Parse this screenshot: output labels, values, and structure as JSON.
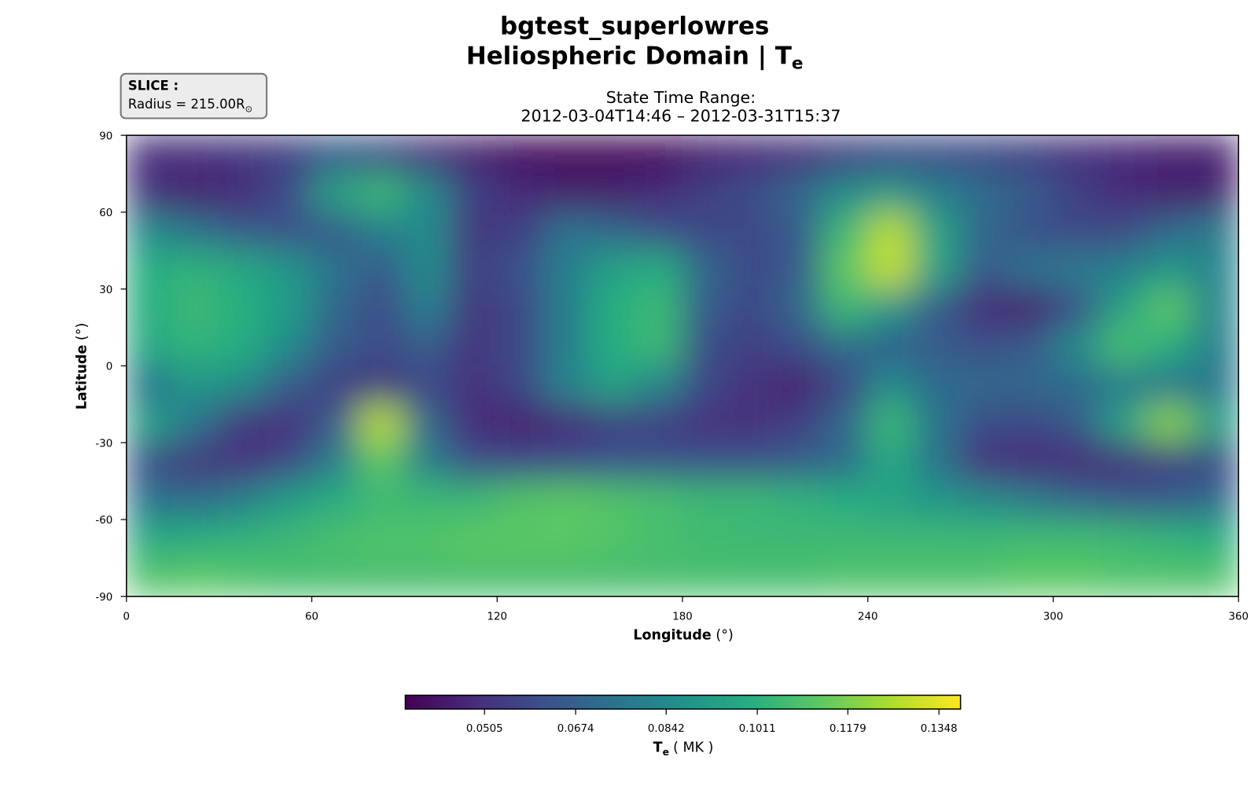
{
  "chart_data": {
    "type": "heatmap",
    "title": "bgtest_superlowres",
    "title2": "Heliospheric Domain | T",
    "title2_sub": "e",
    "subtitle": "State Time Range:",
    "time_range": "2012-03-04T14:46 – 2012-03-31T15:37",
    "slice_label": "SLICE :",
    "slice_text": "Radius = 215.00R",
    "slice_sub": "⊙",
    "xlabel": "Longitude",
    "xlabel_unit": "(°)",
    "ylabel": "Latitude",
    "ylabel_unit": "(°)",
    "colorbar_label": "T",
    "colorbar_sub": "e",
    "colorbar_unit": "( MK )",
    "colormap": "viridis",
    "xlim": [
      0,
      360
    ],
    "xticks": [
      0,
      60,
      120,
      180,
      240,
      300,
      360
    ],
    "ylim": [
      -90,
      90
    ],
    "yticks": [
      -90,
      -60,
      -30,
      0,
      30,
      60,
      90
    ],
    "clim": [
      0.0358,
      0.1388
    ],
    "cticks": [
      0.0505,
      0.0674,
      0.0842,
      0.1011,
      0.1179,
      0.1348
    ],
    "xbins": [
      0,
      15,
      30,
      45,
      60,
      75,
      90,
      105,
      120,
      135,
      150,
      165,
      180,
      195,
      210,
      225,
      240,
      255,
      270,
      285,
      300,
      315,
      330,
      345,
      360
    ],
    "ybins": [
      90,
      75,
      60,
      45,
      30,
      15,
      0,
      -15,
      -30,
      -45,
      -60,
      -75,
      -90
    ],
    "z": [
      [
        0.05,
        0.05,
        0.052,
        0.055,
        0.065,
        0.06,
        0.05,
        0.045,
        0.04,
        0.038,
        0.038,
        0.04,
        0.045,
        0.048,
        0.05,
        0.055,
        0.058,
        0.06,
        0.058,
        0.055,
        0.05,
        0.048,
        0.045,
        0.045
      ],
      [
        0.05,
        0.045,
        0.048,
        0.06,
        0.095,
        0.105,
        0.085,
        0.055,
        0.048,
        0.045,
        0.045,
        0.048,
        0.055,
        0.06,
        0.07,
        0.085,
        0.09,
        0.08,
        0.072,
        0.065,
        0.055,
        0.048,
        0.045,
        0.045
      ],
      [
        0.085,
        0.075,
        0.065,
        0.062,
        0.065,
        0.08,
        0.085,
        0.052,
        0.055,
        0.075,
        0.07,
        0.062,
        0.058,
        0.058,
        0.065,
        0.105,
        0.128,
        0.095,
        0.07,
        0.062,
        0.058,
        0.06,
        0.07,
        0.078
      ],
      [
        0.1,
        0.102,
        0.098,
        0.09,
        0.075,
        0.065,
        0.085,
        0.055,
        0.062,
        0.08,
        0.095,
        0.1,
        0.07,
        0.058,
        0.065,
        0.112,
        0.13,
        0.095,
        0.065,
        0.075,
        0.078,
        0.08,
        0.09,
        0.082
      ],
      [
        0.1,
        0.105,
        0.1,
        0.092,
        0.07,
        0.06,
        0.08,
        0.052,
        0.058,
        0.08,
        0.1,
        0.105,
        0.065,
        0.058,
        0.07,
        0.105,
        0.09,
        0.065,
        0.048,
        0.045,
        0.062,
        0.095,
        0.112,
        0.082
      ],
      [
        0.098,
        0.102,
        0.1,
        0.085,
        0.065,
        0.06,
        0.065,
        0.052,
        0.058,
        0.08,
        0.1,
        0.105,
        0.06,
        0.055,
        0.06,
        0.072,
        0.068,
        0.065,
        0.062,
        0.065,
        0.085,
        0.108,
        0.1,
        0.08
      ],
      [
        0.075,
        0.09,
        0.085,
        0.065,
        0.055,
        0.052,
        0.058,
        0.05,
        0.058,
        0.082,
        0.095,
        0.082,
        0.058,
        0.05,
        0.045,
        0.058,
        0.085,
        0.072,
        0.07,
        0.07,
        0.072,
        0.078,
        0.075,
        0.075
      ],
      [
        0.095,
        0.075,
        0.052,
        0.05,
        0.065,
        0.128,
        0.07,
        0.048,
        0.045,
        0.048,
        0.055,
        0.055,
        0.05,
        0.05,
        0.055,
        0.07,
        0.105,
        0.075,
        0.06,
        0.058,
        0.065,
        0.095,
        0.12,
        0.095
      ],
      [
        0.06,
        0.052,
        0.05,
        0.058,
        0.078,
        0.112,
        0.08,
        0.06,
        0.058,
        0.06,
        0.062,
        0.062,
        0.062,
        0.062,
        0.065,
        0.072,
        0.098,
        0.075,
        0.05,
        0.048,
        0.048,
        0.05,
        0.055,
        0.058
      ],
      [
        0.075,
        0.072,
        0.08,
        0.092,
        0.1,
        0.105,
        0.105,
        0.105,
        0.11,
        0.112,
        0.11,
        0.108,
        0.105,
        0.105,
        0.102,
        0.1,
        0.095,
        0.09,
        0.085,
        0.078,
        0.07,
        0.065,
        0.065,
        0.07
      ],
      [
        0.098,
        0.1,
        0.102,
        0.105,
        0.108,
        0.11,
        0.11,
        0.112,
        0.112,
        0.112,
        0.11,
        0.108,
        0.106,
        0.105,
        0.105,
        0.105,
        0.105,
        0.105,
        0.105,
        0.106,
        0.106,
        0.105,
        0.102,
        0.1
      ],
      [
        0.11,
        0.112,
        0.11,
        0.108,
        0.108,
        0.108,
        0.108,
        0.108,
        0.108,
        0.108,
        0.108,
        0.108,
        0.108,
        0.108,
        0.108,
        0.11,
        0.11,
        0.11,
        0.11,
        0.112,
        0.112,
        0.11,
        0.11,
        0.11
      ]
    ]
  }
}
